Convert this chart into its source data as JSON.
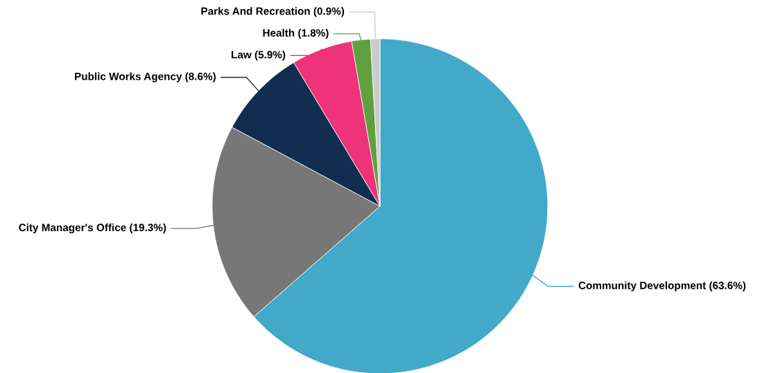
{
  "chart_data": {
    "type": "pie",
    "categories": [
      "Community Development",
      "City Manager's Office",
      "Public Works Agency",
      "Law",
      "Health",
      "Parks And Recreation"
    ],
    "values": [
      63.6,
      19.3,
      8.6,
      5.9,
      1.8,
      0.9
    ],
    "value_labels": [
      "(63.6%)",
      "(19.3%)",
      "(8.6%)",
      "(5.9%)",
      "(1.8%)",
      "(0.9%)"
    ],
    "colors": [
      "#42a9c9",
      "#777777",
      "#122d4f",
      "#ee337b",
      "#61a03f",
      "#cccccc"
    ]
  }
}
